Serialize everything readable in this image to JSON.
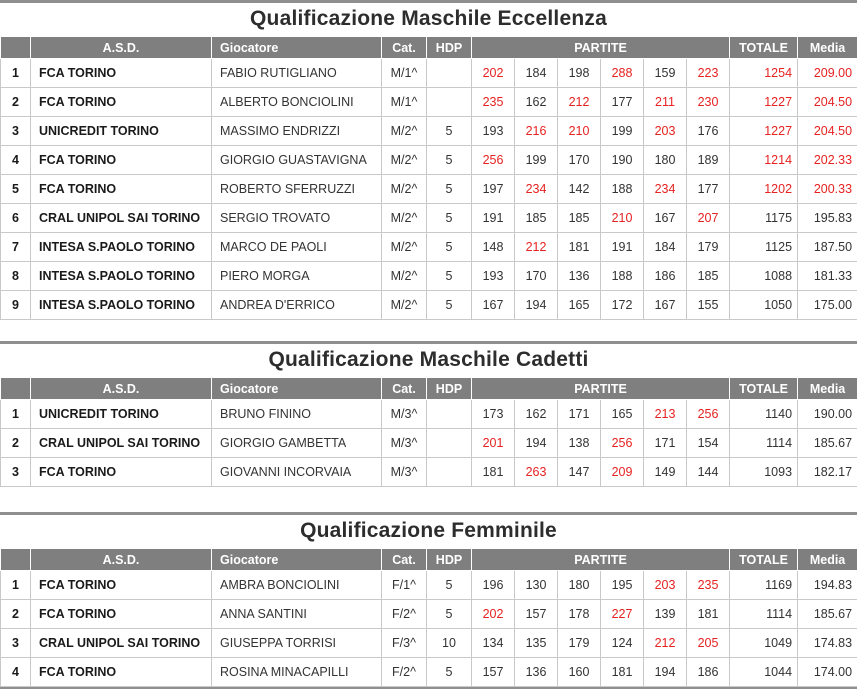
{
  "colors": {
    "header_bg": "#7f7f7f",
    "header_text": "#ffffff",
    "score_highlight_red": "#e62222",
    "body_text": "#333333",
    "title_text": "#2d2d2d",
    "grid_border": "#c9c9c9",
    "divider_bar": "#8f8f8f"
  },
  "thresholds": {
    "game_red_min": 200,
    "total_red_min": 1200,
    "media_red_min": 200
  },
  "column_headers": {
    "rank": "",
    "asd": "A.S.D.",
    "giocatore": "Giocatore",
    "cat": "Cat.",
    "hdp": "HDP",
    "partite": "PARTITE",
    "totale": "TOTALE",
    "media": "Media"
  },
  "tables": [
    {
      "title": "Qualificazione Maschile Eccellenza",
      "rows": [
        {
          "rank": "1",
          "asd": "FCA TORINO",
          "giocatore": "FABIO RUTIGLIANO",
          "cat": "M/1^",
          "hdp": "",
          "games": [
            202,
            184,
            198,
            288,
            159,
            223
          ],
          "totale": 1254,
          "media": "209.00"
        },
        {
          "rank": "2",
          "asd": "FCA TORINO",
          "giocatore": "ALBERTO BONCIOLINI",
          "cat": "M/1^",
          "hdp": "",
          "games": [
            235,
            162,
            212,
            177,
            211,
            230
          ],
          "totale": 1227,
          "media": "204.50"
        },
        {
          "rank": "3",
          "asd": "UNICREDIT TORINO",
          "giocatore": "MASSIMO ENDRIZZI",
          "cat": "M/2^",
          "hdp": "5",
          "games": [
            193,
            216,
            210,
            199,
            203,
            176
          ],
          "totale": 1227,
          "media": "204.50"
        },
        {
          "rank": "4",
          "asd": "FCA TORINO",
          "giocatore": "GIORGIO GUASTAVIGNA",
          "cat": "M/2^",
          "hdp": "5",
          "games": [
            256,
            199,
            170,
            190,
            180,
            189
          ],
          "totale": 1214,
          "media": "202.33"
        },
        {
          "rank": "5",
          "asd": "FCA TORINO",
          "giocatore": "ROBERTO SFERRUZZI",
          "cat": "M/2^",
          "hdp": "5",
          "games": [
            197,
            234,
            142,
            188,
            234,
            177
          ],
          "totale": 1202,
          "media": "200.33"
        },
        {
          "rank": "6",
          "asd": "CRAL UNIPOL SAI TORINO",
          "giocatore": "SERGIO TROVATO",
          "cat": "M/2^",
          "hdp": "5",
          "games": [
            191,
            185,
            185,
            210,
            167,
            207
          ],
          "totale": 1175,
          "media": "195.83"
        },
        {
          "rank": "7",
          "asd": "INTESA S.PAOLO TORINO",
          "giocatore": "MARCO DE PAOLI",
          "cat": "M/2^",
          "hdp": "5",
          "games": [
            148,
            212,
            181,
            191,
            184,
            179
          ],
          "totale": 1125,
          "media": "187.50"
        },
        {
          "rank": "8",
          "asd": "INTESA S.PAOLO TORINO",
          "giocatore": "PIERO MORGA",
          "cat": "M/2^",
          "hdp": "5",
          "games": [
            193,
            170,
            136,
            188,
            186,
            185
          ],
          "totale": 1088,
          "media": "181.33"
        },
        {
          "rank": "9",
          "asd": "INTESA S.PAOLO TORINO",
          "giocatore": "ANDREA D'ERRICO",
          "cat": "M/2^",
          "hdp": "5",
          "games": [
            167,
            194,
            165,
            172,
            167,
            155
          ],
          "totale": 1050,
          "media": "175.00"
        }
      ]
    },
    {
      "title": "Qualificazione Maschile Cadetti",
      "rows": [
        {
          "rank": "1",
          "asd": "UNICREDIT TORINO",
          "giocatore": "BRUNO FININO",
          "cat": "M/3^",
          "hdp": "",
          "games": [
            173,
            162,
            171,
            165,
            213,
            256
          ],
          "totale": 1140,
          "media": "190.00"
        },
        {
          "rank": "2",
          "asd": "CRAL UNIPOL SAI TORINO",
          "giocatore": "GIORGIO GAMBETTA",
          "cat": "M/3^",
          "hdp": "",
          "games": [
            201,
            194,
            138,
            256,
            171,
            154
          ],
          "totale": 1114,
          "media": "185.67"
        },
        {
          "rank": "3",
          "asd": "FCA TORINO",
          "giocatore": "GIOVANNI INCORVAIA",
          "cat": "M/3^",
          "hdp": "",
          "games": [
            181,
            263,
            147,
            209,
            149,
            144
          ],
          "totale": 1093,
          "media": "182.17"
        }
      ]
    },
    {
      "title": "Qualificazione Femminile",
      "rows": [
        {
          "rank": "1",
          "asd": "FCA TORINO",
          "giocatore": "AMBRA BONCIOLINI",
          "cat": "F/1^",
          "hdp": "5",
          "games": [
            196,
            130,
            180,
            195,
            203,
            235
          ],
          "totale": 1169,
          "media": "194.83"
        },
        {
          "rank": "2",
          "asd": "FCA TORINO",
          "giocatore": "ANNA SANTINI",
          "cat": "F/2^",
          "hdp": "5",
          "games": [
            202,
            157,
            178,
            227,
            139,
            181
          ],
          "totale": 1114,
          "media": "185.67"
        },
        {
          "rank": "3",
          "asd": "CRAL UNIPOL SAI TORINO",
          "giocatore": "GIUSEPPA TORRISI",
          "cat": "F/3^",
          "hdp": "10",
          "games": [
            134,
            135,
            179,
            124,
            212,
            205
          ],
          "totale": 1049,
          "media": "174.83"
        },
        {
          "rank": "4",
          "asd": "FCA TORINO",
          "giocatore": "ROSINA MINACAPILLI",
          "cat": "F/2^",
          "hdp": "5",
          "games": [
            157,
            136,
            160,
            181,
            194,
            186
          ],
          "totale": 1044,
          "media": "174.00"
        }
      ]
    }
  ]
}
